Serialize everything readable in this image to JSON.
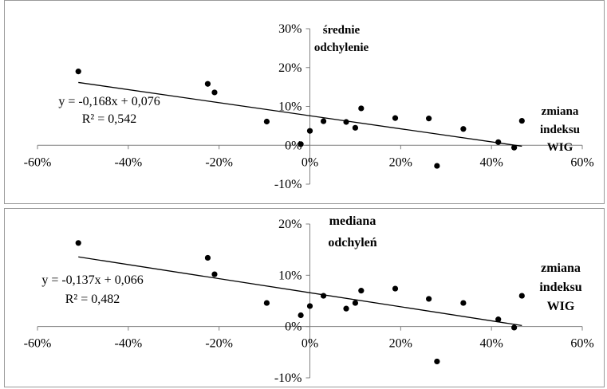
{
  "chart_data": [
    {
      "type": "scatter",
      "title": "",
      "ylabel": "średnie odchylenie",
      "xlabel": "zmiana indeksu WIG",
      "ylabel_lines": [
        "średnie",
        "odchylenie"
      ],
      "xlabel_lines": [
        "zmiana",
        "indeksu",
        "WIG"
      ],
      "xlim": [
        -0.6,
        0.6
      ],
      "ylim": [
        -0.1,
        0.3
      ],
      "x_ticks": [
        -0.6,
        -0.4,
        -0.2,
        0,
        0.2,
        0.4,
        0.6
      ],
      "x_tick_labels": [
        "-60%",
        "-40%",
        "-20%",
        "0%",
        "20%",
        "40%",
        "60%"
      ],
      "y_ticks": [
        -0.1,
        0,
        0.1,
        0.2,
        0.3
      ],
      "y_tick_labels": [
        "-10%",
        "0%",
        "10%",
        "20%",
        "30%"
      ],
      "points": [
        {
          "x": -0.51,
          "y": 0.19
        },
        {
          "x": -0.225,
          "y": 0.158
        },
        {
          "x": -0.21,
          "y": 0.136
        },
        {
          "x": -0.095,
          "y": 0.061
        },
        {
          "x": -0.02,
          "y": 0.003
        },
        {
          "x": 0.0,
          "y": 0.037
        },
        {
          "x": 0.03,
          "y": 0.062
        },
        {
          "x": 0.08,
          "y": 0.06
        },
        {
          "x": 0.1,
          "y": 0.045
        },
        {
          "x": 0.113,
          "y": 0.095
        },
        {
          "x": 0.188,
          "y": 0.07
        },
        {
          "x": 0.262,
          "y": 0.069
        },
        {
          "x": 0.28,
          "y": -0.053
        },
        {
          "x": 0.338,
          "y": 0.042
        },
        {
          "x": 0.415,
          "y": 0.008
        },
        {
          "x": 0.45,
          "y": -0.006
        },
        {
          "x": 0.467,
          "y": 0.063
        }
      ],
      "trendline": {
        "slope": -0.168,
        "intercept": 0.076,
        "x_range": [
          -0.51,
          0.467
        ]
      },
      "equation": "y = -0,168x + 0,076",
      "r_squared": "R² = 0,542",
      "grid": false
    },
    {
      "type": "scatter",
      "title": "",
      "ylabel": "mediana odchyleń",
      "xlabel": "zmiana indeksu WIG",
      "ylabel_lines": [
        "mediana",
        "odchyleń"
      ],
      "xlabel_lines": [
        "zmiana",
        "indeksu",
        "WIG"
      ],
      "xlim": [
        -0.6,
        0.6
      ],
      "ylim": [
        -0.1,
        0.2
      ],
      "x_ticks": [
        -0.6,
        -0.4,
        -0.2,
        0,
        0.2,
        0.4,
        0.6
      ],
      "x_tick_labels": [
        "-60%",
        "-40%",
        "-20%",
        "0%",
        "20%",
        "40%",
        "60%"
      ],
      "y_ticks": [
        -0.1,
        0,
        0.1,
        0.2
      ],
      "y_tick_labels": [
        "-10%",
        "0%",
        "10%",
        "20%"
      ],
      "points": [
        {
          "x": -0.51,
          "y": 0.163
        },
        {
          "x": -0.225,
          "y": 0.134
        },
        {
          "x": -0.21,
          "y": 0.102
        },
        {
          "x": -0.095,
          "y": 0.046
        },
        {
          "x": -0.02,
          "y": 0.022
        },
        {
          "x": 0.0,
          "y": 0.04
        },
        {
          "x": 0.03,
          "y": 0.06
        },
        {
          "x": 0.08,
          "y": 0.035
        },
        {
          "x": 0.1,
          "y": 0.046
        },
        {
          "x": 0.113,
          "y": 0.07
        },
        {
          "x": 0.188,
          "y": 0.074
        },
        {
          "x": 0.262,
          "y": 0.054
        },
        {
          "x": 0.28,
          "y": -0.068
        },
        {
          "x": 0.338,
          "y": 0.046
        },
        {
          "x": 0.415,
          "y": 0.014
        },
        {
          "x": 0.45,
          "y": -0.002
        },
        {
          "x": 0.467,
          "y": 0.06
        }
      ],
      "trendline": {
        "slope": -0.137,
        "intercept": 0.066,
        "x_range": [
          -0.51,
          0.467
        ]
      },
      "equation": "y = -0,137x + 0,066",
      "r_squared": "R² = 0,482",
      "grid": false
    }
  ]
}
